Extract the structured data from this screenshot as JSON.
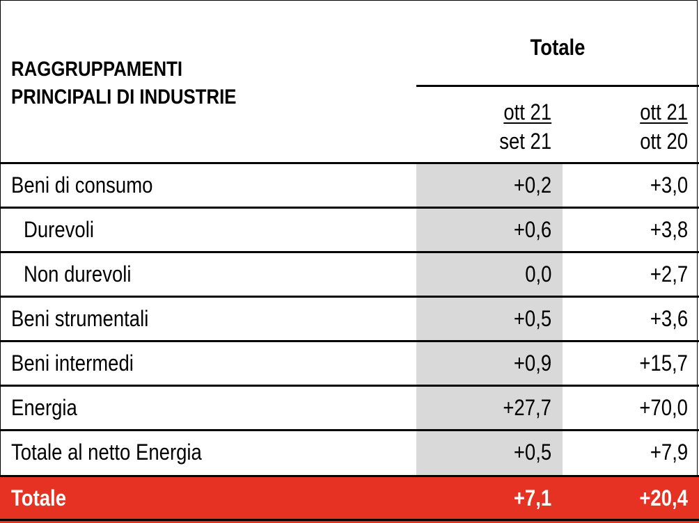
{
  "header": {
    "row_group_title_line1": "RAGGRUPPAMENTI",
    "row_group_title_line2": "PRINCIPALI DI INDUSTRIE",
    "column_group_title": "Totale",
    "columns": [
      {
        "numerator": "ott 21",
        "denominator": "set 21"
      },
      {
        "numerator": "ott 21",
        "denominator": "ott 20"
      }
    ]
  },
  "rows": [
    {
      "label": "Beni di consumo",
      "v1": "+0,2",
      "v2": "+3,0"
    },
    {
      "label": "Durevoli",
      "v1": "+0,6",
      "v2": "+3,8"
    },
    {
      "label": "Non durevoli",
      "v1": "0,0",
      "v2": "+2,7"
    },
    {
      "label": "Beni strumentali",
      "v1": "+0,5",
      "v2": "+3,6"
    },
    {
      "label": "Beni intermedi",
      "v1": "+0,9",
      "v2": "+15,7"
    },
    {
      "label": "Energia",
      "v1": "+27,7",
      "v2": "+70,0"
    },
    {
      "label": "Totale al netto Energia",
      "v1": "+0,5",
      "v2": "+7,9"
    }
  ],
  "total_row": {
    "label": "Totale",
    "v1": "+7,1",
    "v2": "+20,4"
  },
  "colors": {
    "total_row_background": "#e63222",
    "highlight_column": "#d9d9d9"
  }
}
